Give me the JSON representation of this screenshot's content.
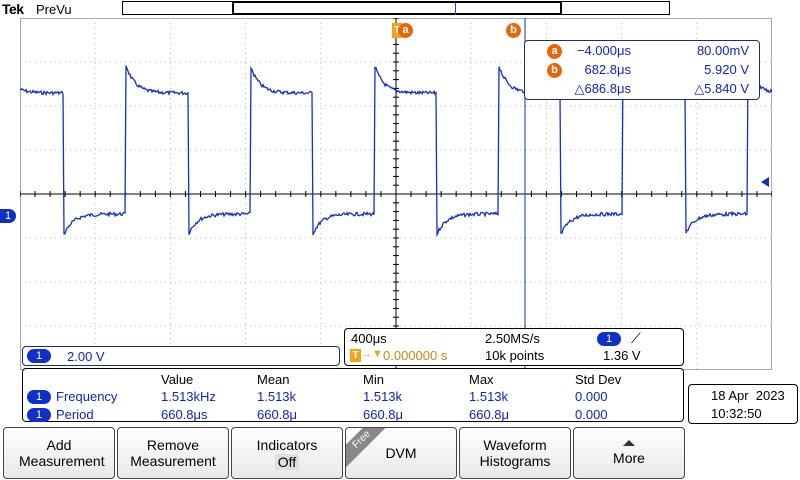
{
  "header": {
    "brand": "Tek",
    "acquisition_state": "PreVu"
  },
  "markers": {
    "trigger_position_glyph": "T",
    "cursor_a_glyph": "a",
    "cursor_b_glyph": "b",
    "channel_glyph": "1"
  },
  "cursor_readout": {
    "a": {
      "label": "a",
      "time": "−4.000μs",
      "value": "80.00mV"
    },
    "b": {
      "label": "b",
      "time": "682.8μs",
      "value": "5.920 V"
    },
    "delta": {
      "time": "△686.8μs",
      "value": "△5.840 V"
    }
  },
  "vertical": {
    "channel": "1",
    "scale": "2.00 V"
  },
  "horizontal": {
    "timebase": "400μs",
    "sample_rate": "2.50MS/s",
    "trigger_channel": "1",
    "trigger_slope_glyph": "⟋",
    "trigger_position": "0.000000 s",
    "record_length": "10k points",
    "trigger_level": "1.36 V",
    "trigger_position_glyph": "T",
    "arrow_glyph": "→▼"
  },
  "measurements": {
    "headers": [
      "Value",
      "Mean",
      "Min",
      "Max",
      "Std Dev"
    ],
    "rows": [
      {
        "channel": "1",
        "name": "Frequency",
        "value": "1.513kHz",
        "mean": "1.513k",
        "min": "1.513k",
        "max": "1.513k",
        "std": "0.000"
      },
      {
        "channel": "1",
        "name": "Period",
        "value": "660.8μs",
        "mean": "660.8μ",
        "min": "660.8μ",
        "max": "660.8μ",
        "std": "0.000"
      }
    ]
  },
  "datetime": {
    "date": "18 Apr  2023",
    "time": "10:32:50"
  },
  "softkeys": {
    "add_measurement": "Add Measurement",
    "remove_measurement": "Remove Measurement",
    "indicators": "Indicators",
    "indicators_state": "Off",
    "free_tag": "Free",
    "dvm": "DVM",
    "waveform_histograms": "Waveform Histograms",
    "more": "More"
  },
  "colors": {
    "trace": "#1030c8",
    "cursor": "#e8660a",
    "trigger": "#f0a21c",
    "text_blue": "#1024c0"
  }
}
